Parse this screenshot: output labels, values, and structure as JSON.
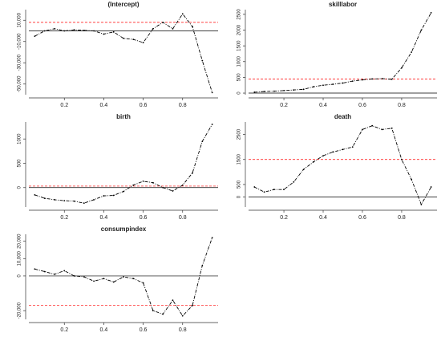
{
  "chart_data": [
    {
      "type": "line",
      "title": "(Intercept)",
      "x": [
        0.05,
        0.1,
        0.15,
        0.2,
        0.25,
        0.3,
        0.35,
        0.4,
        0.45,
        0.5,
        0.55,
        0.6,
        0.65,
        0.7,
        0.75,
        0.8,
        0.85,
        0.9,
        0.95
      ],
      "series": [
        {
          "color": "#000000",
          "values": [
            -5000,
            0,
            2000,
            0,
            1000,
            500,
            0,
            -3000,
            -1000,
            -7000,
            -8000,
            -11000,
            2000,
            8000,
            2000,
            16000,
            4000,
            -28000,
            -58000
          ]
        }
      ],
      "xlim": [
        0.02,
        0.98
      ],
      "xticks": [
        0.2,
        0.4,
        0.6,
        0.8
      ],
      "ylim": [
        -60000,
        20000
      ],
      "yticks": [
        {
          "value": -50000,
          "label": "-50,000"
        },
        {
          "value": -30000,
          "label": "-30,000"
        },
        {
          "value": -10000,
          "label": "-10,000"
        },
        {
          "value": 10000,
          "label": "10,000"
        }
      ],
      "reference_lines": [
        {
          "value": 0,
          "color": "#000000"
        },
        {
          "value": 8000,
          "color": "#ff0000",
          "dashed": true
        }
      ]
    },
    {
      "type": "line",
      "title": "skilllabor",
      "x": [
        0.05,
        0.1,
        0.15,
        0.2,
        0.25,
        0.3,
        0.35,
        0.4,
        0.45,
        0.5,
        0.55,
        0.6,
        0.65,
        0.7,
        0.75,
        0.8,
        0.85,
        0.9,
        0.95
      ],
      "series": [
        {
          "color": "#000000",
          "values": [
            30,
            50,
            60,
            80,
            100,
            120,
            200,
            250,
            280,
            320,
            380,
            420,
            450,
            460,
            440,
            800,
            1300,
            2000,
            2550
          ]
        }
      ],
      "xlim": [
        0.02,
        0.98
      ],
      "xticks": [
        0.2,
        0.4,
        0.6,
        0.8
      ],
      "ylim": [
        -50,
        2650
      ],
      "yticks": [
        0,
        500,
        1000,
        1500,
        2000,
        2500
      ],
      "reference_lines": [
        {
          "value": 0,
          "color": "#000000"
        },
        {
          "value": 450,
          "color": "#ff0000",
          "dashed": true
        }
      ]
    },
    {
      "type": "line",
      "title": "birth",
      "x": [
        0.05,
        0.1,
        0.15,
        0.2,
        0.25,
        0.3,
        0.35,
        0.4,
        0.45,
        0.5,
        0.55,
        0.6,
        0.65,
        0.7,
        0.75,
        0.8,
        0.85,
        0.9,
        0.95
      ],
      "series": [
        {
          "color": "#000000",
          "values": [
            -150,
            -220,
            -250,
            -270,
            -280,
            -320,
            -250,
            -170,
            -160,
            -80,
            50,
            130,
            100,
            0,
            -70,
            50,
            300,
            950,
            1300
          ]
        }
      ],
      "xlim": [
        0.02,
        0.98
      ],
      "xticks": [
        0.2,
        0.4,
        0.6,
        0.8
      ],
      "ylim": [
        -400,
        1350
      ],
      "yticks": [
        0,
        500,
        1000
      ],
      "reference_lines": [
        {
          "value": 0,
          "color": "#000000"
        },
        {
          "value": 30,
          "color": "#ff0000",
          "dashed": true
        }
      ]
    },
    {
      "type": "line",
      "title": "death",
      "x": [
        0.05,
        0.1,
        0.15,
        0.2,
        0.25,
        0.3,
        0.35,
        0.4,
        0.45,
        0.5,
        0.55,
        0.6,
        0.65,
        0.7,
        0.75,
        0.8,
        0.85,
        0.9,
        0.95
      ],
      "series": [
        {
          "color": "#000000",
          "values": [
            400,
            200,
            300,
            300,
            600,
            1100,
            1400,
            1650,
            1800,
            1900,
            2000,
            2700,
            2850,
            2700,
            2750,
            1500,
            700,
            -300,
            400
          ]
        }
      ],
      "xlim": [
        0.02,
        0.98
      ],
      "xticks": [
        0.2,
        0.4,
        0.6,
        0.8
      ],
      "ylim": [
        -400,
        3000
      ],
      "yticks": [
        0,
        500,
        1500,
        2500
      ],
      "reference_lines": [
        {
          "value": 0,
          "color": "#000000"
        },
        {
          "value": 1500,
          "color": "#ff0000",
          "dashed": true
        }
      ]
    },
    {
      "type": "line",
      "title": "consumpindex",
      "x": [
        0.05,
        0.1,
        0.15,
        0.2,
        0.25,
        0.3,
        0.35,
        0.4,
        0.45,
        0.5,
        0.55,
        0.6,
        0.65,
        0.7,
        0.75,
        0.8,
        0.85,
        0.9,
        0.95
      ],
      "series": [
        {
          "color": "#000000",
          "values": [
            4000,
            2500,
            1000,
            3000,
            0,
            -500,
            -3000,
            -1500,
            -3500,
            -500,
            -1500,
            -4000,
            -20000,
            -22000,
            -14000,
            -23000,
            -17000,
            6000,
            22000
          ]
        }
      ],
      "xlim": [
        0.02,
        0.98
      ],
      "xticks": [
        0.2,
        0.4,
        0.6,
        0.8
      ],
      "ylim": [
        -25000,
        24000
      ],
      "yticks": [
        {
          "value": -20000,
          "label": "-20,000"
        },
        0,
        {
          "value": 10000,
          "label": "10,000"
        },
        {
          "value": 20000,
          "label": "20,000"
        }
      ],
      "reference_lines": [
        {
          "value": 0,
          "color": "#000000"
        },
        {
          "value": -17000,
          "color": "#ff0000",
          "dashed": true
        }
      ]
    }
  ]
}
